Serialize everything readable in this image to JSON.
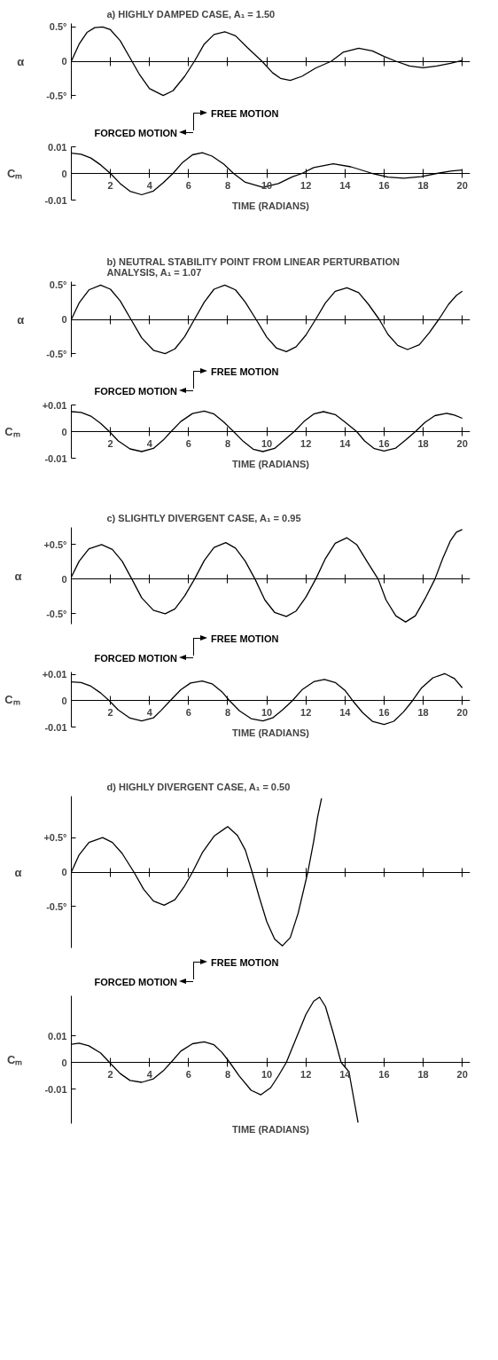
{
  "chart_data": [
    {
      "type": "line",
      "title": "a) HIGHLY DAMPED CASE, A₁ = 1.50",
      "ylabel": "α",
      "xlim": [
        0,
        20.4
      ],
      "ylim": [
        -0.55,
        0.55
      ],
      "xticks": [
        2,
        4,
        6,
        8,
        10,
        12,
        14,
        16,
        18,
        20
      ],
      "yticks": [
        {
          "value": 0.5,
          "label": "0.5°"
        },
        0,
        {
          "value": -0.5,
          "label": "-0.5°"
        }
      ],
      "tick_labels": "y",
      "series": [
        {
          "color": "#000000",
          "x": [
            0,
            0.4,
            0.8,
            1.2,
            1.6,
            2.0,
            2.5,
            3.1,
            3.5,
            4.0,
            4.7,
            5.2,
            5.8,
            6.3,
            6.8,
            7.3,
            7.85,
            8.4,
            9.0,
            9.75,
            10.3,
            10.7,
            11.2,
            11.8,
            12.5,
            13.3,
            13.9,
            14.7,
            15.4,
            16.0,
            16.6,
            17.3,
            18.0,
            18.7,
            19.4,
            20
          ],
          "values": [
            0,
            0.25,
            0.42,
            0.49,
            0.5,
            0.46,
            0.3,
            0,
            -0.2,
            -0.4,
            -0.5,
            -0.43,
            -0.22,
            0,
            0.25,
            0.39,
            0.43,
            0.37,
            0.2,
            0,
            -0.17,
            -0.25,
            -0.28,
            -0.22,
            -0.1,
            0,
            0.13,
            0.19,
            0.15,
            0.07,
            0,
            -0.07,
            -0.095,
            -0.07,
            -0.03,
            0.01
          ]
        }
      ]
    },
    {
      "type": "line",
      "ylabel": "Cₘ",
      "xlabel": "TIME (RADIANS)",
      "xlim": [
        0,
        20.4
      ],
      "ylim": [
        -0.01,
        0.01
      ],
      "xticks": [
        2,
        4,
        6,
        8,
        10,
        12,
        14,
        16,
        18,
        20
      ],
      "yticks": [
        0.01,
        0,
        -0.01
      ],
      "annotations": [
        "FORCED MOTION",
        "FREE MOTION"
      ],
      "series": [
        {
          "color": "#000000",
          "x": [
            0,
            0.5,
            1.0,
            1.5,
            2.0,
            2.5,
            3.0,
            3.6,
            4.2,
            4.7,
            5.2,
            5.7,
            6.2,
            6.7,
            7.2,
            7.8,
            8.3,
            8.9,
            9.8,
            10.6,
            11.3,
            11.8,
            12.4,
            13.4,
            14.3,
            15.4,
            16.2,
            17.0,
            17.9,
            18.7,
            19.4,
            20
          ],
          "values": [
            0.0076,
            0.0072,
            0.0058,
            0.0032,
            0,
            -0.0038,
            -0.0067,
            -0.008,
            -0.0066,
            -0.0035,
            0,
            0.0042,
            0.007,
            0.0078,
            0.0065,
            0.0035,
            0,
            -0.0033,
            -0.0052,
            -0.0038,
            -0.0013,
            0,
            0.0022,
            0.0036,
            0.0025,
            0,
            -0.0014,
            -0.0018,
            -0.0012,
            0,
            0.0009,
            0.0013
          ]
        }
      ]
    },
    {
      "type": "line",
      "title": "b) NEUTRAL STABILITY POINT FROM LINEAR PERTURBATION ANALYSIS, A₁ = 1.07",
      "ylabel": "α",
      "xlim": [
        0,
        20.4
      ],
      "ylim": [
        -0.55,
        0.55
      ],
      "xticks": [
        2,
        4,
        6,
        8,
        10,
        12,
        14,
        16,
        18,
        20
      ],
      "yticks": [
        {
          "value": 0.5,
          "label": "0.5°"
        },
        0,
        {
          "value": -0.5,
          "label": "-0.5°"
        }
      ],
      "tick_labels": "y",
      "series": [
        {
          "color": "#000000",
          "x": [
            0,
            0.4,
            0.9,
            1.5,
            2.0,
            2.5,
            3.05,
            3.6,
            4.2,
            4.8,
            5.3,
            5.8,
            6.3,
            6.8,
            7.3,
            7.85,
            8.4,
            8.9,
            9.45,
            10.0,
            10.5,
            11.0,
            11.5,
            12.0,
            12.5,
            13.0,
            13.5,
            14.1,
            14.7,
            15.2,
            15.75,
            16.2,
            16.7,
            17.2,
            17.8,
            18.3,
            18.8,
            19.3,
            19.7,
            20
          ],
          "values": [
            0,
            0.24,
            0.43,
            0.5,
            0.44,
            0.27,
            0,
            -0.27,
            -0.45,
            -0.5,
            -0.43,
            -0.25,
            0,
            0.25,
            0.44,
            0.5,
            0.43,
            0.25,
            0,
            -0.26,
            -0.42,
            -0.47,
            -0.4,
            -0.23,
            0,
            0.24,
            0.41,
            0.46,
            0.39,
            0.22,
            0,
            -0.22,
            -0.38,
            -0.44,
            -0.37,
            -0.2,
            0,
            0.22,
            0.35,
            0.41
          ]
        }
      ]
    },
    {
      "type": "line",
      "ylabel": "Cₘ",
      "xlabel": "TIME (RADIANS)",
      "xlim": [
        0,
        20.4
      ],
      "ylim": [
        -0.01,
        0.01
      ],
      "xticks": [
        2,
        4,
        6,
        8,
        10,
        12,
        14,
        16,
        18,
        20
      ],
      "yticks": [
        {
          "value": 0.01,
          "label": "+0.01"
        },
        0,
        -0.01
      ],
      "annotations": [
        "FORCED MOTION",
        "FREE MOTION"
      ],
      "series": [
        {
          "color": "#000000",
          "x": [
            0,
            0.5,
            1.0,
            1.5,
            1.95,
            2.4,
            3.0,
            3.6,
            4.2,
            4.7,
            5.1,
            5.6,
            6.2,
            6.8,
            7.3,
            7.8,
            8.3,
            8.8,
            9.3,
            9.8,
            10.4,
            10.9,
            11.4,
            11.9,
            12.4,
            12.9,
            13.5,
            14.0,
            14.6,
            15.0,
            15.5,
            16.0,
            16.6,
            17.1,
            17.6,
            18.1,
            18.6,
            19.2,
            19.6,
            20
          ],
          "values": [
            0.0075,
            0.0072,
            0.0058,
            0.0031,
            0,
            -0.0035,
            -0.0065,
            -0.0075,
            -0.0063,
            -0.0032,
            0,
            0.0038,
            0.0068,
            0.0077,
            0.0066,
            0.0036,
            0,
            -0.0037,
            -0.0066,
            -0.0075,
            -0.0063,
            -0.0032,
            0,
            0.0038,
            0.0066,
            0.0075,
            0.0064,
            0.0036,
            0,
            -0.0035,
            -0.0064,
            -0.0073,
            -0.0062,
            -0.0032,
            0,
            0.0035,
            0.006,
            0.0069,
            0.0062,
            0.005
          ]
        }
      ]
    },
    {
      "type": "line",
      "title": "c) SLIGHTLY DIVERGENT CASE, A₁ = 0.95",
      "ylabel": "α",
      "xlim": [
        0,
        20.4
      ],
      "ylim": [
        -0.65,
        0.75
      ],
      "xticks": [
        2,
        4,
        6,
        8,
        10,
        12,
        14,
        16,
        18,
        20
      ],
      "yticks": [
        {
          "value": 0.5,
          "label": "+0.5°"
        },
        0,
        {
          "value": -0.5,
          "label": "-0.5°"
        }
      ],
      "tick_labels": "y",
      "series": [
        {
          "color": "#000000",
          "x": [
            0,
            0.4,
            0.9,
            1.55,
            2.1,
            2.6,
            3.1,
            3.6,
            4.2,
            4.8,
            5.3,
            5.8,
            6.3,
            6.8,
            7.3,
            7.9,
            8.4,
            8.9,
            9.4,
            9.9,
            10.4,
            11.0,
            11.5,
            12.0,
            12.5,
            13.0,
            13.5,
            14.1,
            14.6,
            15.1,
            15.7,
            16.1,
            16.6,
            17.1,
            17.6,
            18.1,
            18.6,
            19.0,
            19.4,
            19.7,
            20
          ],
          "values": [
            0.03,
            0.26,
            0.44,
            0.5,
            0.43,
            0.26,
            0,
            -0.27,
            -0.45,
            -0.5,
            -0.43,
            -0.24,
            0,
            0.27,
            0.46,
            0.53,
            0.45,
            0.26,
            0,
            -0.3,
            -0.48,
            -0.54,
            -0.46,
            -0.26,
            0,
            0.3,
            0.52,
            0.6,
            0.5,
            0.27,
            0,
            -0.3,
            -0.53,
            -0.62,
            -0.53,
            -0.28,
            0,
            0.3,
            0.56,
            0.68,
            0.72
          ]
        }
      ]
    },
    {
      "type": "line",
      "ylabel": "Cₘ",
      "xlabel": "TIME (RADIANS)",
      "xlim": [
        0,
        20.4
      ],
      "ylim": [
        -0.01,
        0.011
      ],
      "xticks": [
        2,
        4,
        6,
        8,
        10,
        12,
        14,
        16,
        18,
        20
      ],
      "yticks": [
        {
          "value": 0.01,
          "label": "+0.01"
        },
        0,
        -0.01
      ],
      "annotations": [
        "FORCED MOTION",
        "FREE MOTION"
      ],
      "series": [
        {
          "color": "#000000",
          "x": [
            0,
            0.5,
            1.0,
            1.5,
            1.95,
            2.4,
            3.0,
            3.6,
            4.2,
            4.6,
            5.05,
            5.6,
            6.1,
            6.7,
            7.2,
            7.7,
            8.1,
            8.6,
            9.2,
            9.8,
            10.3,
            10.8,
            11.3,
            11.8,
            12.4,
            12.95,
            13.5,
            14.0,
            14.4,
            14.9,
            15.4,
            16.0,
            16.5,
            17.0,
            17.45,
            17.9,
            18.5,
            19.1,
            19.6,
            20
          ],
          "values": [
            0.0072,
            0.007,
            0.0056,
            0.003,
            0,
            -0.0035,
            -0.0066,
            -0.0077,
            -0.0065,
            -0.0036,
            0,
            0.0042,
            0.0068,
            0.0076,
            0.0065,
            0.0035,
            0,
            -0.0038,
            -0.0068,
            -0.0077,
            -0.0065,
            -0.0035,
            0,
            0.0042,
            0.0073,
            0.0082,
            0.007,
            0.004,
            0,
            -0.0045,
            -0.0078,
            -0.009,
            -0.0078,
            -0.0042,
            0,
            0.0048,
            0.0088,
            0.0104,
            0.0085,
            0.005
          ]
        }
      ]
    },
    {
      "type": "line",
      "title": "d) HIGHLY DIVERGENT CASE, A₁ = 0.50",
      "ylabel": "α",
      "xlim": [
        0,
        20.4
      ],
      "ylim": [
        -1.1,
        1.1
      ],
      "xticks": [
        2,
        4,
        6,
        8,
        10,
        12,
        14,
        16,
        18,
        20
      ],
      "yticks": [
        {
          "value": 0.5,
          "label": "+0.5°"
        },
        0,
        {
          "value": -0.5,
          "label": "-0.5°"
        }
      ],
      "tick_labels": "y",
      "series": [
        {
          "color": "#000000",
          "x": [
            0,
            0.4,
            0.9,
            1.6,
            2.1,
            2.6,
            3.2,
            3.7,
            4.2,
            4.75,
            5.3,
            5.8,
            6.2,
            6.7,
            7.3,
            8.0,
            8.5,
            8.9,
            9.25,
            9.6,
            10.0,
            10.4,
            10.8,
            11.2,
            11.6,
            12.1,
            12.4,
            12.6,
            12.8
          ],
          "values": [
            0,
            0.25,
            0.43,
            0.5,
            0.43,
            0.27,
            0,
            -0.25,
            -0.42,
            -0.48,
            -0.4,
            -0.2,
            0,
            0.28,
            0.52,
            0.66,
            0.53,
            0.32,
            0,
            -0.35,
            -0.72,
            -0.97,
            -1.07,
            -0.95,
            -0.6,
            0,
            0.45,
            0.8,
            1.07
          ]
        }
      ]
    },
    {
      "type": "line",
      "ylabel": "Cₘ",
      "xlabel": "TIME (RADIANS)",
      "xlim": [
        0,
        20.4
      ],
      "ylim": [
        -0.023,
        0.025
      ],
      "xticks": [
        2,
        4,
        6,
        8,
        10,
        12,
        14,
        16,
        18,
        20
      ],
      "yticks": [
        0.01,
        0,
        -0.01
      ],
      "annotations": [
        "FORCED MOTION",
        "FREE MOTION"
      ],
      "series": [
        {
          "color": "#000000",
          "x": [
            0,
            0.4,
            0.9,
            1.5,
            1.95,
            2.5,
            3.0,
            3.6,
            4.2,
            4.7,
            5.1,
            5.6,
            6.2,
            6.8,
            7.3,
            7.7,
            8.1,
            8.6,
            9.2,
            9.7,
            10.2,
            10.6,
            11.0,
            11.5,
            12.0,
            12.4,
            12.7,
            13.0,
            13.4,
            13.8,
            14.2,
            14.67
          ],
          "values": [
            0.0068,
            0.0072,
            0.0062,
            0.0035,
            0,
            -0.0042,
            -0.0068,
            -0.0075,
            -0.0062,
            -0.0032,
            0,
            0.0042,
            0.007,
            0.0077,
            0.0066,
            0.0038,
            0,
            -0.0052,
            -0.0105,
            -0.0122,
            -0.0095,
            -0.005,
            0,
            0.009,
            0.018,
            0.023,
            0.0245,
            0.021,
            0.011,
            0,
            -0.0035,
            -0.0226
          ]
        }
      ]
    }
  ]
}
